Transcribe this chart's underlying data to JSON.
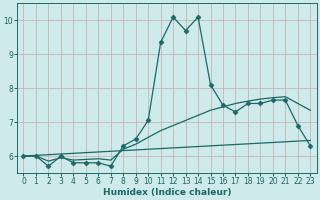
{
  "xlabel": "Humidex (Indice chaleur)",
  "bg_color": "#ceeaea",
  "grid_color": "#c8a8a8",
  "line_color": "#1a6868",
  "xlim": [
    -0.5,
    23.5
  ],
  "ylim": [
    5.5,
    10.5
  ],
  "xticks": [
    0,
    1,
    2,
    3,
    4,
    5,
    6,
    7,
    8,
    9,
    10,
    11,
    12,
    13,
    14,
    15,
    16,
    17,
    18,
    19,
    20,
    21,
    22,
    23
  ],
  "yticks": [
    6,
    7,
    8,
    9,
    10
  ],
  "x": [
    0,
    1,
    2,
    3,
    4,
    5,
    6,
    7,
    8,
    9,
    10,
    11,
    12,
    13,
    14,
    15,
    16,
    17,
    18,
    19,
    20,
    21,
    22,
    23
  ],
  "line_main": [
    6.0,
    6.0,
    5.7,
    6.0,
    5.8,
    5.8,
    5.8,
    5.7,
    6.3,
    6.5,
    7.05,
    9.35,
    10.1,
    9.7,
    10.1,
    8.1,
    7.5,
    7.3,
    7.55,
    7.55,
    7.65,
    7.65,
    6.9,
    6.3
  ],
  "trend_steep": [
    6.0,
    6.0,
    5.85,
    5.95,
    5.88,
    5.9,
    5.92,
    5.88,
    6.2,
    6.35,
    6.55,
    6.75,
    6.9,
    7.05,
    7.2,
    7.35,
    7.45,
    7.55,
    7.62,
    7.68,
    7.72,
    7.75,
    7.55,
    7.35
  ],
  "trend_flat": [
    6.0,
    6.02,
    6.04,
    6.06,
    6.08,
    6.1,
    6.12,
    6.14,
    6.16,
    6.18,
    6.2,
    6.22,
    6.24,
    6.26,
    6.28,
    6.3,
    6.32,
    6.34,
    6.36,
    6.38,
    6.4,
    6.42,
    6.44,
    6.46
  ],
  "marker": "D",
  "markersize": 2.5,
  "linewidth": 0.9
}
